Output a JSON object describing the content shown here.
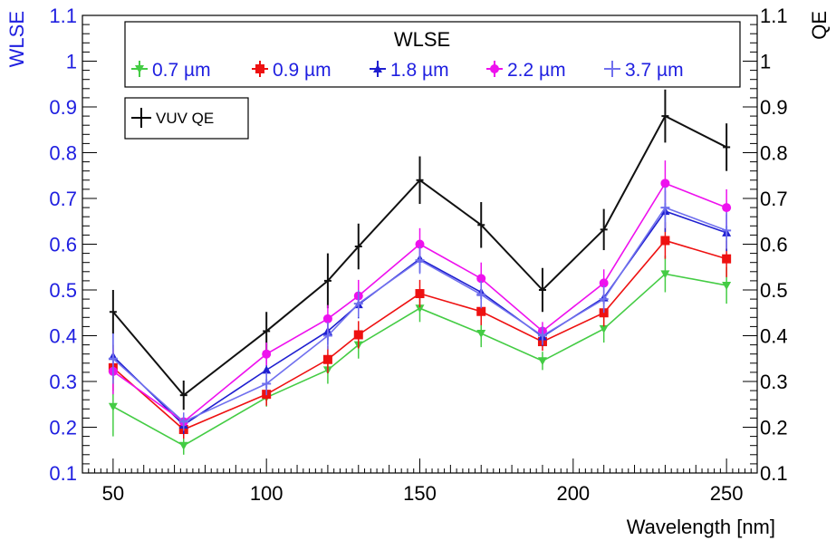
{
  "chart_data": {
    "type": "line",
    "title": "",
    "xlabel": "Wavelength [nm]",
    "ylabel_left": "WLSE",
    "ylabel_right": "QE",
    "xlim": [
      40,
      260
    ],
    "ylim": [
      0.1,
      1.1
    ],
    "x_ticks": [
      50,
      100,
      150,
      200,
      250
    ],
    "y_ticks": [
      "0.1",
      "0.2",
      "0.3",
      "0.4",
      "0.5",
      "0.6",
      "0.7",
      "0.8",
      "0.9",
      "1",
      "1.1"
    ],
    "legend_title": "WLSE",
    "legend_placement": "top-center",
    "x": [
      50,
      73,
      100,
      120,
      130,
      150,
      170,
      190,
      210,
      230,
      250
    ],
    "series": [
      {
        "name": "0.7 µm",
        "color": "#44cc44",
        "marker": "triangle-down",
        "values": [
          0.245,
          0.16,
          0.265,
          0.325,
          0.38,
          0.46,
          0.405,
          0.345,
          0.415,
          0.535,
          0.51
        ],
        "errors": [
          0.065,
          0.02,
          0.02,
          0.03,
          0.03,
          0.03,
          0.03,
          0.02,
          0.03,
          0.04,
          0.04
        ]
      },
      {
        "name": "0.9 µm",
        "color": "#ee1111",
        "marker": "square",
        "values": [
          0.33,
          0.195,
          0.272,
          0.348,
          0.402,
          0.492,
          0.453,
          0.387,
          0.45,
          0.608,
          0.568
        ],
        "errors": [
          0.05,
          0.02,
          0.025,
          0.03,
          0.03,
          0.03,
          0.03,
          0.02,
          0.03,
          0.04,
          0.04
        ]
      },
      {
        "name": "1.8 µm",
        "color": "#1f1fd0",
        "marker": "triangle-up",
        "values": [
          0.355,
          0.205,
          0.325,
          0.41,
          0.468,
          0.568,
          0.495,
          0.398,
          0.483,
          0.672,
          0.625
        ],
        "errors": [
          0.05,
          0.02,
          0.025,
          0.03,
          0.03,
          0.03,
          0.03,
          0.02,
          0.03,
          0.045,
          0.04
        ]
      },
      {
        "name": "2.2 µm",
        "color": "#ee11ee",
        "marker": "circle",
        "values": [
          0.322,
          0.212,
          0.36,
          0.437,
          0.487,
          0.6,
          0.525,
          0.41,
          0.515,
          0.733,
          0.68
        ],
        "errors": [
          0.05,
          0.02,
          0.025,
          0.03,
          0.035,
          0.035,
          0.035,
          0.02,
          0.03,
          0.05,
          0.04
        ]
      },
      {
        "name": "3.7 µm",
        "color": "#7070ee",
        "marker": "cross",
        "values": [
          0.35,
          0.212,
          0.295,
          0.4,
          0.47,
          0.565,
          0.49,
          0.4,
          0.48,
          0.68,
          0.63
        ],
        "errors": [
          0.055,
          0.02,
          0.025,
          0.03,
          0.03,
          0.03,
          0.03,
          0.02,
          0.03,
          0.045,
          0.04
        ]
      }
    ],
    "qe_series": {
      "name": "VUV QE",
      "color": "#111111",
      "values": [
        0.452,
        0.27,
        0.41,
        0.52,
        0.595,
        0.74,
        0.642,
        0.5,
        0.632,
        0.88,
        0.812
      ],
      "errors": [
        0.048,
        0.032,
        0.042,
        0.06,
        0.05,
        0.052,
        0.05,
        0.048,
        0.045,
        0.058,
        0.052
      ]
    },
    "axis_color_left": "#1f1fe0",
    "axis_color_right": "#000000"
  }
}
